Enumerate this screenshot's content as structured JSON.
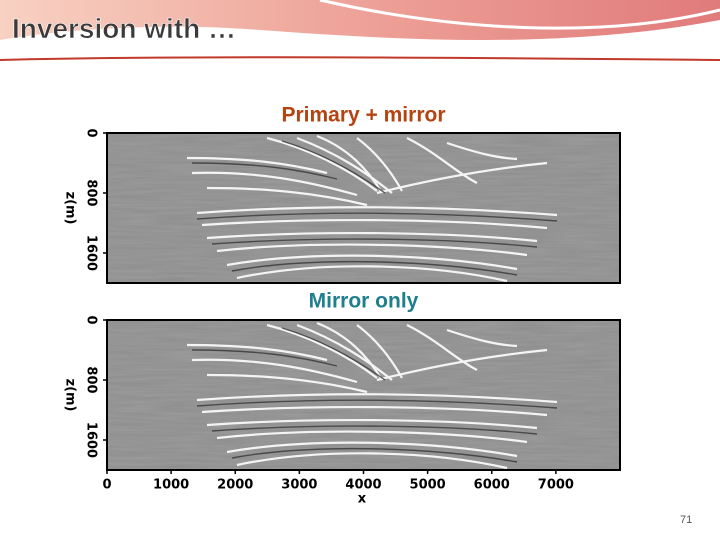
{
  "header": {
    "title": "Inversion with …"
  },
  "panels": [
    {
      "label": "Primary + mirror",
      "ylabel": "z(m)",
      "yticks": [
        0,
        800,
        1600
      ],
      "ylim": [
        0,
        2000
      ]
    },
    {
      "label": "Mirror only",
      "ylabel": "z(m)",
      "yticks": [
        0,
        800,
        1600
      ],
      "ylim": [
        0,
        2000
      ]
    }
  ],
  "xaxis": {
    "label": "x",
    "ticks": [
      0,
      1000,
      2000,
      3000,
      4000,
      5000,
      6000,
      7000
    ],
    "xlim": [
      0,
      8000
    ]
  },
  "page_number": "71"
}
